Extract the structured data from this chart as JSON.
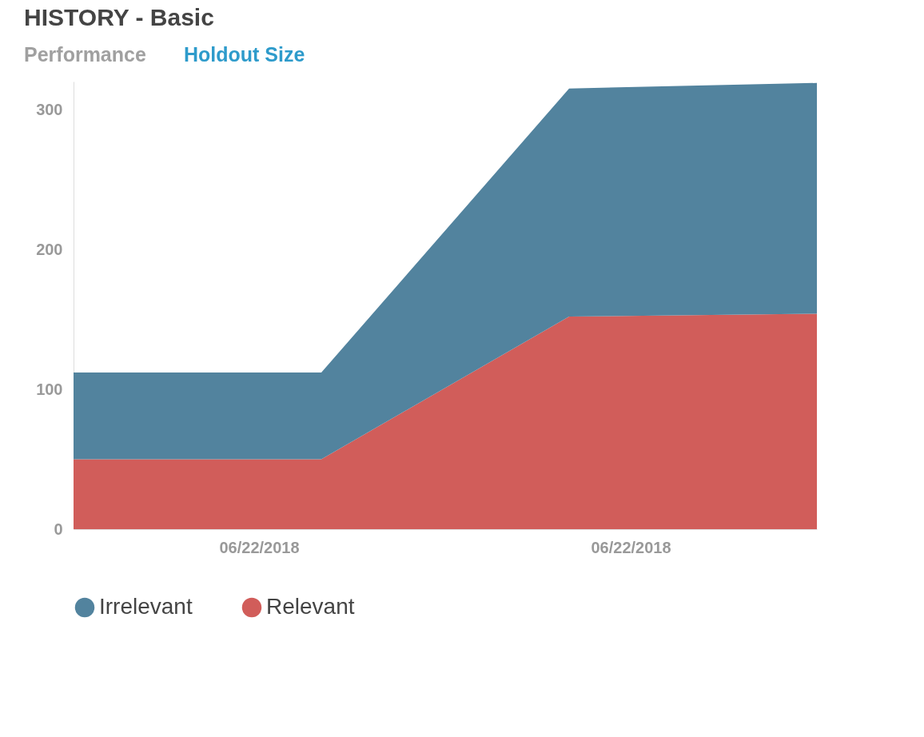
{
  "chart_data": {
    "type": "area",
    "title": "HISTORY - Basic",
    "annotations": [
      "Performance",
      "Holdout Size",
      "06/22/2018",
      "06/22/2018"
    ],
    "categories": [
      null,
      null,
      null,
      null
    ],
    "ylim": [
      0,
      320
    ],
    "yticks": [
      0,
      100,
      200,
      300
    ],
    "stacked": true,
    "grid": false,
    "legend": "bottom",
    "series": [
      {
        "name": "Relevant",
        "color": "#d15d5a",
        "values": [
          50,
          50,
          152,
          154
        ]
      },
      {
        "name": "Irrelevant",
        "color": "#52839e",
        "values": [
          62,
          62,
          163,
          165
        ]
      }
    ]
  }
}
